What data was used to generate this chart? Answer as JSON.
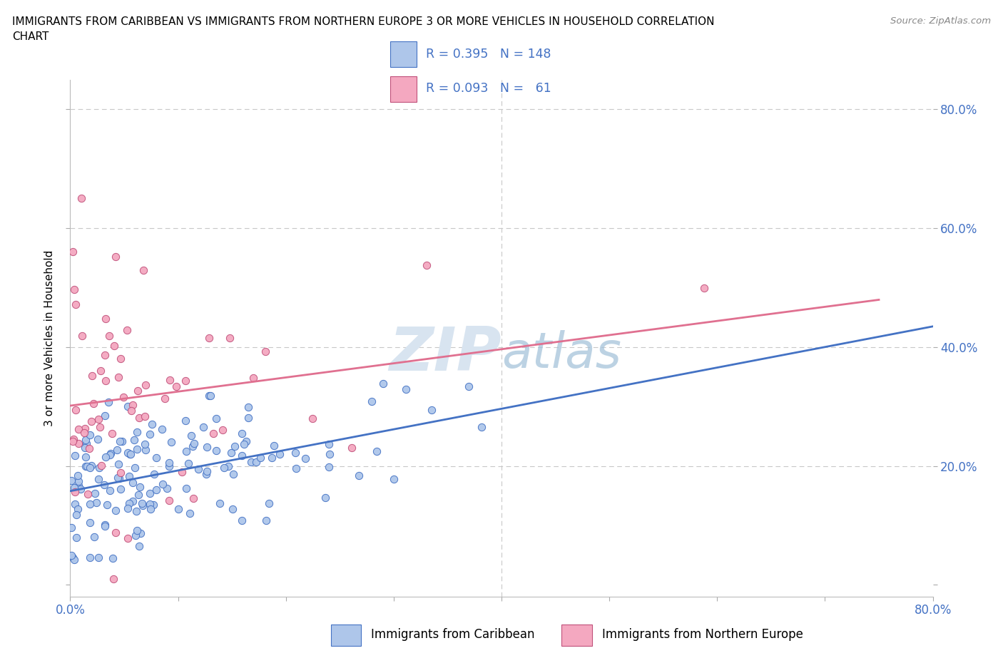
{
  "title_line1": "IMMIGRANTS FROM CARIBBEAN VS IMMIGRANTS FROM NORTHERN EUROPE 3 OR MORE VEHICLES IN HOUSEHOLD CORRELATION",
  "title_line2": "CHART",
  "source": "Source: ZipAtlas.com",
  "ylabel": "3 or more Vehicles in Household",
  "x_range": [
    0.0,
    0.8
  ],
  "y_range": [
    -0.02,
    0.85
  ],
  "caribbean_color": "#aec6ea",
  "caribbean_edge_color": "#4472c4",
  "northern_europe_color": "#f4a8c0",
  "northern_europe_edge_color": "#c0507a",
  "caribbean_line_color": "#4472c4",
  "northern_europe_line_color": "#e07090",
  "caribbean_R": 0.395,
  "caribbean_N": 148,
  "northern_europe_R": 0.093,
  "northern_europe_N": 61,
  "legend_text_color": "#4472c4",
  "watermark_color": "#d0dce8",
  "background_color": "#ffffff",
  "grid_color": "#c8c8c8",
  "scatter_size": 55,
  "title_fontsize": 11,
  "axis_tick_color": "#4472c4",
  "axis_tick_fontsize": 12
}
